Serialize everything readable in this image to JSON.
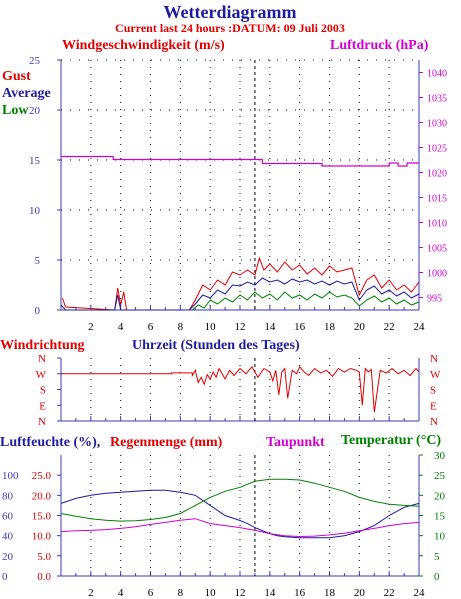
{
  "header": {
    "title": "Wetterdiagramm",
    "subtitle": "Current last 24 hours :DATUM: 09 Juli 2003"
  },
  "colors": {
    "blue": "#1c1c9c",
    "red": "#e00000",
    "green": "#008000",
    "magenta": "#d000d0",
    "axis_blue": "#3b3bbb",
    "dark": "#000000"
  },
  "chart_data": [
    {
      "type": "line",
      "panel": "wind_pressure",
      "left_label": "Windgeschwindigkeit (m/s)",
      "right_label": "Luftdruck (hPa)",
      "legend": [
        "Gust",
        "Average",
        "Low"
      ],
      "x_ticks": [
        "2",
        "4",
        "6",
        "8",
        "10",
        "12",
        "14",
        "16",
        "18",
        "20",
        "22",
        "24"
      ],
      "xlim": [
        0,
        24
      ],
      "y_left_ticks": [
        "0",
        "5",
        "10",
        "15",
        "20",
        "25"
      ],
      "ylim_left": [
        0,
        25
      ],
      "y_right_ticks": [
        "995",
        "1000",
        "1005",
        "1010",
        "1015",
        "1020",
        "1025",
        "1030",
        "1035",
        "1040"
      ],
      "ylim_right": [
        992.5,
        1042.5
      ],
      "series": [
        {
          "name": "Gust",
          "color": "#e00000",
          "x": [
            0.1,
            0.3,
            3.6,
            3.8,
            4.0,
            4.2,
            4.4,
            8.6,
            9.0,
            9.5,
            10.0,
            10.5,
            11.0,
            11.5,
            12.0,
            12.5,
            13.0,
            13.3,
            13.6,
            14.0,
            14.5,
            15.0,
            15.5,
            16.0,
            16.5,
            17.0,
            17.5,
            18.0,
            18.5,
            19.0,
            19.5,
            20.0,
            20.5,
            21.0,
            21.5,
            22.0,
            22.5,
            23.0,
            23.5,
            24.0
          ],
          "values": [
            1.2,
            0.3,
            0,
            2.2,
            0.5,
            1.8,
            0,
            0,
            1.0,
            2.5,
            2.0,
            3.0,
            2.5,
            3.8,
            3.5,
            4.0,
            3.5,
            5.2,
            4.0,
            4.6,
            3.8,
            4.8,
            4.0,
            4.5,
            3.6,
            4.2,
            3.5,
            4.4,
            3.8,
            4.0,
            4.2,
            1.5,
            3.0,
            3.5,
            2.2,
            3.0,
            2.0,
            2.5,
            1.8,
            2.8
          ]
        },
        {
          "name": "Average",
          "color": "#1c1c9c",
          "x": [
            0,
            0.3,
            3.6,
            3.8,
            4.0,
            8.6,
            9.0,
            9.5,
            10.0,
            10.5,
            11.0,
            11.5,
            12.0,
            12.5,
            13.0,
            13.5,
            14.0,
            14.5,
            15.0,
            15.5,
            16.0,
            16.5,
            17.0,
            17.5,
            18.0,
            18.5,
            19.0,
            19.5,
            20.0,
            20.5,
            21.0,
            21.5,
            22.0,
            22.5,
            23.0,
            23.5,
            24.0
          ],
          "values": [
            0.5,
            0,
            0,
            1.5,
            0,
            0,
            0.6,
            1.5,
            1.2,
            2.0,
            1.6,
            2.5,
            2.4,
            2.8,
            2.5,
            3.2,
            2.8,
            3.0,
            2.6,
            3.1,
            2.8,
            3.0,
            2.6,
            2.9,
            2.5,
            2.9,
            2.6,
            2.8,
            1.0,
            2.0,
            2.4,
            1.6,
            2.0,
            1.4,
            1.8,
            1.2,
            1.6
          ]
        },
        {
          "name": "Low",
          "color": "#008000",
          "x": [
            8.8,
            9.2,
            9.6,
            10.0,
            10.5,
            11.0,
            11.5,
            12.0,
            12.5,
            13.0,
            13.5,
            14.0,
            14.5,
            15.0,
            15.5,
            16.0,
            16.5,
            17.0,
            17.5,
            18.0,
            18.5,
            19.0,
            19.5,
            20.0,
            20.5,
            21.0,
            21.5,
            22.0,
            22.5,
            23.0,
            23.5,
            24.0
          ],
          "values": [
            0,
            0.5,
            0.2,
            1.0,
            0.6,
            1.2,
            0.8,
            1.5,
            1.0,
            1.8,
            1.2,
            1.6,
            1.0,
            1.8,
            1.2,
            1.5,
            1.0,
            1.6,
            1.2,
            1.8,
            1.3,
            1.5,
            1.2,
            0.4,
            1.0,
            1.4,
            0.8,
            1.2,
            0.6,
            1.0,
            0.5,
            0.8
          ]
        },
        {
          "name": "Luftdruck",
          "axis": "right",
          "color": "#d000d0",
          "x": [
            0,
            3.5,
            3.5,
            13.5,
            13.5,
            17.5,
            17.5,
            22.0,
            22.0,
            22.6,
            22.6,
            23.2,
            23.2,
            24.0
          ],
          "values": [
            1023.2,
            1023.2,
            1022.6,
            1022.6,
            1021.8,
            1021.8,
            1021.3,
            1021.3,
            1021.9,
            1021.9,
            1021.3,
            1021.3,
            1021.9,
            1021.9
          ]
        }
      ]
    },
    {
      "type": "line",
      "panel": "wind_direction",
      "left_label": "Windrichtung",
      "xlabel": "Uhrzeit (Stunden des Tages)",
      "y_ticks": [
        "N",
        "W",
        "S",
        "E",
        "N"
      ],
      "series": [
        {
          "name": "Windrichtung",
          "color": "#e00000",
          "x": [
            0,
            7.4,
            7.4,
            8.8,
            8.8,
            9.0,
            9.2,
            9.4,
            9.6,
            9.8,
            10.0,
            10.2,
            10.4,
            10.6,
            10.8,
            11.0,
            11.3,
            11.6,
            12.0,
            12.4,
            12.8,
            13.2,
            13.6,
            14.0,
            14.2,
            14.4,
            14.6,
            14.8,
            15.0,
            15.2,
            15.5,
            15.8,
            16.0,
            16.3,
            16.6,
            17.0,
            17.4,
            17.8,
            18.2,
            18.6,
            19.0,
            19.4,
            19.8,
            20.0,
            20.2,
            20.4,
            20.6,
            20.8,
            21.0,
            21.4,
            21.8,
            22.2,
            22.6,
            23.0,
            23.4,
            23.8,
            24.0
          ],
          "values": [
            270,
            270,
            275,
            275,
            260,
            290,
            220,
            250,
            210,
            265,
            240,
            280,
            250,
            300,
            270,
            240,
            290,
            260,
            300,
            270,
            310,
            250,
            300,
            280,
            230,
            290,
            150,
            280,
            300,
            130,
            290,
            270,
            310,
            280,
            260,
            300,
            275,
            290,
            255,
            300,
            280,
            300,
            290,
            280,
            90,
            300,
            280,
            295,
            50,
            290,
            275,
            300,
            270,
            290,
            260,
            300,
            280
          ]
        }
      ]
    },
    {
      "type": "line",
      "panel": "humidity_temperature",
      "labels": [
        "Luftfeuchte (%),",
        "Regenmenge (mm)",
        "Taupunkt",
        "Temperatur (°C)"
      ],
      "y_left_ticks": [
        "0",
        "20",
        "40",
        "60",
        "80",
        "100"
      ],
      "ylim_left": [
        0,
        120
      ],
      "y_mid_ticks": [
        "0.0",
        "5.0",
        "10.0",
        "15.0",
        "20.0",
        "25.0"
      ],
      "ylim_mid": [
        0,
        30
      ],
      "y_right_ticks": [
        "0",
        "5",
        "10",
        "15",
        "20",
        "25",
        "30"
      ],
      "ylim_right": [
        0,
        30
      ],
      "series": [
        {
          "name": "Luftfeuchte",
          "color": "#1c1c9c",
          "x": [
            0,
            1,
            2,
            3,
            4,
            5,
            6,
            7,
            8,
            9,
            10,
            11,
            12,
            12.5,
            13,
            13.5,
            14,
            14.5,
            15,
            16,
            17,
            18,
            19,
            20,
            21,
            22,
            23,
            24
          ],
          "values": [
            72,
            77,
            80,
            82,
            83,
            84,
            85,
            85,
            83,
            80,
            70,
            60,
            55,
            52,
            48,
            45,
            42,
            40,
            39,
            38,
            38,
            38,
            40,
            44,
            50,
            60,
            68,
            72
          ]
        },
        {
          "name": "Temperatur",
          "color": "#008000",
          "x": [
            0,
            1,
            2,
            3,
            4,
            5,
            6,
            7,
            8,
            9,
            10,
            11,
            12,
            13,
            14,
            15,
            16,
            17,
            18,
            19,
            20,
            21,
            22,
            23,
            24
          ],
          "values": [
            15.5,
            14.8,
            14.2,
            13.8,
            13.6,
            13.7,
            14.0,
            14.5,
            15.5,
            17.5,
            19.5,
            21.0,
            22.0,
            23.5,
            24.0,
            24.0,
            23.8,
            23.0,
            22.0,
            21.0,
            19.5,
            18.5,
            17.8,
            17.5,
            17.3
          ]
        },
        {
          "name": "Taupunkt",
          "color": "#d000d0",
          "x": [
            0,
            1,
            2,
            3,
            4,
            5,
            6,
            7,
            8,
            9,
            10,
            11,
            12,
            13,
            14,
            15,
            16,
            17,
            18,
            19,
            20,
            21,
            22,
            23,
            24
          ],
          "values": [
            11.0,
            11.2,
            11.3,
            11.5,
            11.8,
            12.2,
            12.8,
            13.3,
            13.8,
            14.2,
            13.0,
            12.5,
            12.0,
            11.3,
            10.5,
            10.0,
            9.8,
            9.9,
            10.2,
            10.6,
            11.2,
            11.8,
            12.5,
            13.0,
            13.3
          ]
        }
      ]
    }
  ]
}
